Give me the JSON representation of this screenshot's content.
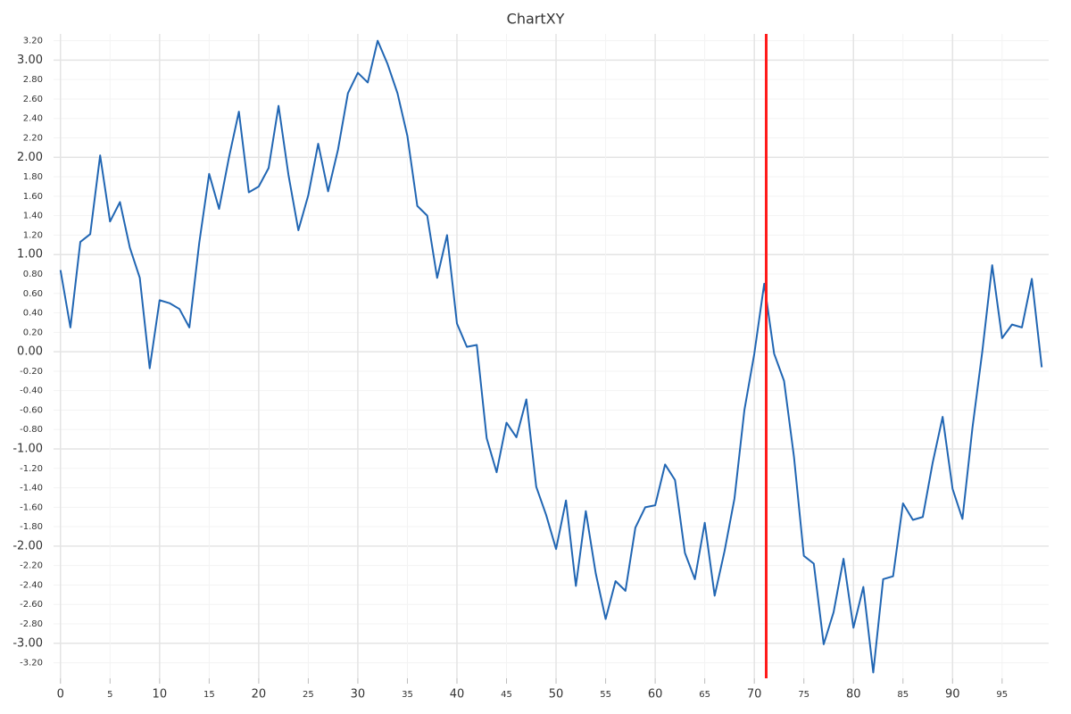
{
  "chart_data": {
    "type": "line",
    "title": "ChartXY",
    "x": [
      0,
      1,
      2,
      3,
      4,
      5,
      6,
      7,
      8,
      9,
      10,
      11,
      12,
      13,
      14,
      15,
      16,
      17,
      18,
      19,
      20,
      21,
      22,
      23,
      24,
      25,
      26,
      27,
      28,
      29,
      30,
      31,
      32,
      33,
      34,
      35,
      36,
      37,
      38,
      39,
      40,
      41,
      42,
      43,
      44,
      45,
      46,
      47,
      48,
      49,
      50,
      51,
      52,
      53,
      54,
      55,
      56,
      57,
      58,
      59,
      60,
      61,
      62,
      63,
      64,
      65,
      66,
      67,
      68,
      69,
      70,
      71,
      72,
      73,
      74,
      75,
      76,
      77,
      78,
      79,
      80,
      81,
      82,
      83,
      84,
      85,
      86,
      87,
      88,
      89,
      90,
      91,
      92,
      93,
      94,
      95,
      96,
      97,
      98,
      99
    ],
    "values": [
      0.84,
      0.25,
      1.13,
      1.21,
      2.02,
      1.34,
      1.54,
      1.07,
      0.76,
      -0.17,
      0.53,
      0.5,
      0.44,
      0.25,
      1.12,
      1.83,
      1.47,
      2.0,
      2.47,
      1.64,
      1.7,
      1.89,
      2.53,
      1.82,
      1.25,
      1.61,
      2.14,
      1.65,
      2.08,
      2.66,
      2.87,
      2.77,
      3.2,
      2.96,
      2.66,
      2.22,
      1.5,
      1.4,
      0.76,
      1.2,
      0.29,
      0.05,
      0.07,
      -0.89,
      -1.24,
      -0.73,
      -0.88,
      -0.49,
      -1.39,
      -1.68,
      -2.03,
      -1.53,
      -2.41,
      -1.64,
      -2.28,
      -2.75,
      -2.36,
      -2.46,
      -1.81,
      -1.6,
      -1.58,
      -1.16,
      -1.32,
      -2.07,
      -2.34,
      -1.76,
      -2.51,
      -2.05,
      -1.51,
      -0.6,
      -0.02,
      0.7,
      -0.02,
      -0.3,
      -1.08,
      -2.1,
      -2.18,
      -3.01,
      -2.68,
      -2.13,
      -2.84,
      -2.42,
      -3.3,
      -2.34,
      -2.31,
      -1.56,
      -1.73,
      -1.7,
      -1.14,
      -0.67,
      -1.41,
      -1.72,
      -0.79,
      0.0,
      0.89,
      0.14,
      0.28,
      0.25,
      0.75,
      -0.16
    ],
    "color": "#2166b3",
    "xlim": [
      -0.7,
      99.7
    ],
    "ylim": [
      -3.36,
      3.27
    ],
    "xticks": [
      0,
      5,
      10,
      15,
      20,
      25,
      30,
      35,
      40,
      45,
      50,
      55,
      60,
      65,
      70,
      75,
      80,
      85,
      90,
      95
    ],
    "yticks": [
      {
        "value": -3.2,
        "label": "-3.20"
      },
      {
        "value": -3.0,
        "label": "-3.00"
      },
      {
        "value": -2.8,
        "label": "-2.80"
      },
      {
        "value": -2.6,
        "label": "-2.60"
      },
      {
        "value": -2.4,
        "label": "-2.40"
      },
      {
        "value": -2.2,
        "label": "-2.20"
      },
      {
        "value": -2.0,
        "label": "-2.00"
      },
      {
        "value": -1.8,
        "label": "-1.80"
      },
      {
        "value": -1.6,
        "label": "-1.60"
      },
      {
        "value": -1.4,
        "label": "-1.40"
      },
      {
        "value": -1.2,
        "label": "-1.20"
      },
      {
        "value": -1.0,
        "label": "-1.00"
      },
      {
        "value": -0.8,
        "label": "-0.80"
      },
      {
        "value": -0.6,
        "label": "-0.60"
      },
      {
        "value": -0.4,
        "label": "-0.40"
      },
      {
        "value": -0.2,
        "label": "-0.20"
      },
      {
        "value": 0.0,
        "label": "0.00"
      },
      {
        "value": 0.2,
        "label": "0.20"
      },
      {
        "value": 0.4,
        "label": "0.40"
      },
      {
        "value": 0.6,
        "label": "0.60"
      },
      {
        "value": 0.8,
        "label": "0.80"
      },
      {
        "value": 1.0,
        "label": "1.00"
      },
      {
        "value": 1.2,
        "label": "1.20"
      },
      {
        "value": 1.4,
        "label": "1.40"
      },
      {
        "value": 1.6,
        "label": "1.60"
      },
      {
        "value": 1.8,
        "label": "1.80"
      },
      {
        "value": 2.0,
        "label": "2.00"
      },
      {
        "value": 2.2,
        "label": "2.20"
      },
      {
        "value": 2.4,
        "label": "2.40"
      },
      {
        "value": 2.6,
        "label": "2.60"
      },
      {
        "value": 2.8,
        "label": "2.80"
      },
      {
        "value": 3.0,
        "label": "3.00"
      },
      {
        "value": 3.2,
        "label": "3.20"
      }
    ],
    "grid": true,
    "constant_line": {
      "x": 71.2,
      "color": "#ff1a1a"
    }
  }
}
